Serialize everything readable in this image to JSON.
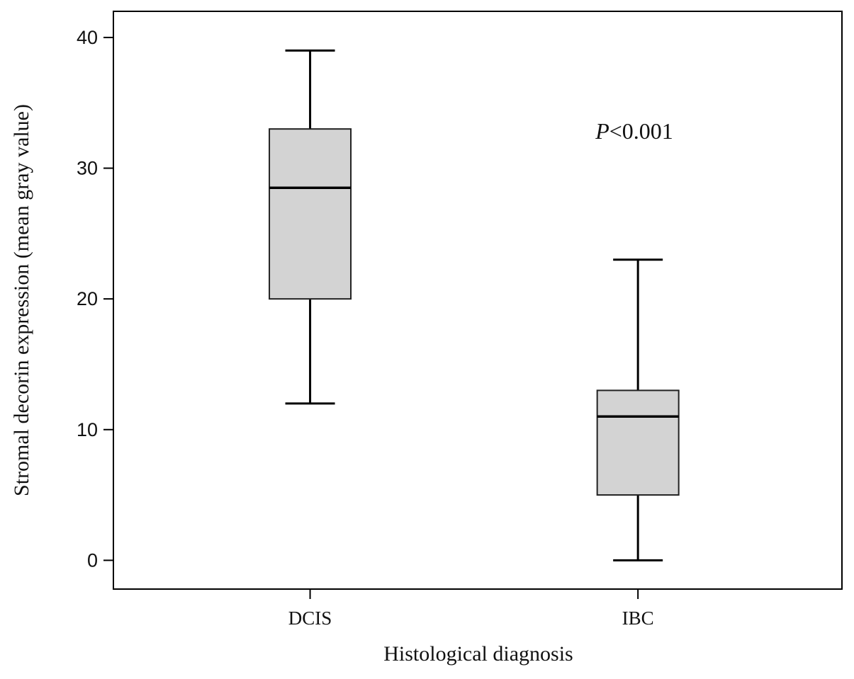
{
  "chart_data": {
    "type": "box",
    "title": "",
    "xlabel": "Histological diagnosis",
    "ylabel": "Stromal decorin expression (mean gray value)",
    "ylim": [
      -2.2,
      42
    ],
    "yticks": [
      0,
      10,
      20,
      30,
      40
    ],
    "categories": [
      "DCIS",
      "IBC"
    ],
    "boxes": [
      {
        "category": "DCIS",
        "min": 12,
        "q1": 20,
        "median": 28.5,
        "q3": 33,
        "max": 39
      },
      {
        "category": "IBC",
        "min": 0,
        "q1": 5,
        "median": 11,
        "q3": 13,
        "max": 23
      }
    ],
    "annotation": {
      "italic": "P",
      "text": "<0.001"
    },
    "grid": false,
    "legend": "none",
    "box_fill": "#d3d3d3",
    "line_color": "#000000"
  }
}
